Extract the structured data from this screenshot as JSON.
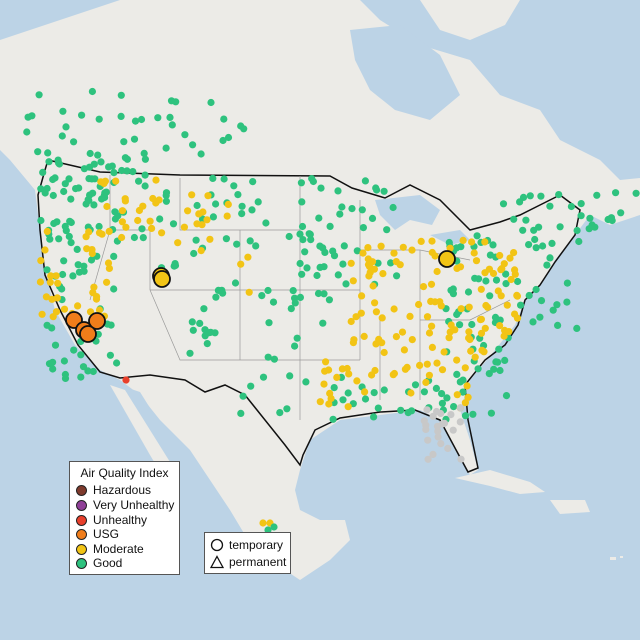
{
  "legend": {
    "title": "Air Quality Index",
    "items": [
      {
        "label": "Hazardous",
        "color": "#7e3a2c"
      },
      {
        "label": "Very Unhealthy",
        "color": "#8f3f97"
      },
      {
        "label": "Unhealthy",
        "color": "#e8402c"
      },
      {
        "label": "USG",
        "color": "#f07d1a"
      },
      {
        "label": "Moderate",
        "color": "#f2c415"
      },
      {
        "label": "Good",
        "color": "#2ec27e"
      }
    ]
  },
  "monitor_types": {
    "items": [
      {
        "label": "temporary",
        "shape": "circle"
      },
      {
        "label": "permanent",
        "shape": "triangle"
      }
    ]
  },
  "colors": {
    "ocean": "#bcd3e6",
    "land": "#ecebe7",
    "good": "#2ec27e",
    "moderate": "#f2c415",
    "usg": "#f07d1a",
    "unhealthy": "#e8402c",
    "no_data": "#c8c8c8"
  }
}
